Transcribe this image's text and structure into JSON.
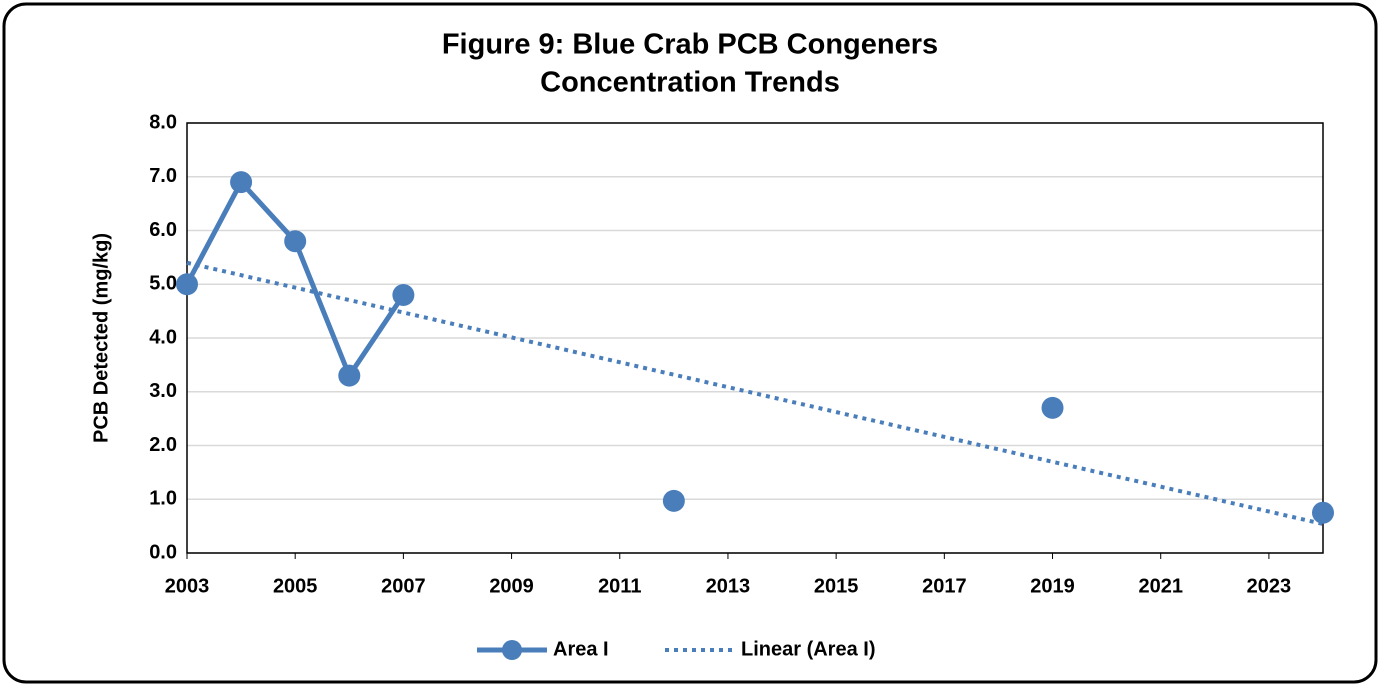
{
  "chart_data": {
    "type": "line",
    "title": [
      "Figure 9: Blue Crab PCB Congeners",
      "Concentration Trends"
    ],
    "ylabel": "PCB Detected (mg/kg)",
    "xlim": [
      2003,
      2024
    ],
    "xticks": [
      2003,
      2005,
      2007,
      2009,
      2011,
      2013,
      2015,
      2017,
      2019,
      2021,
      2023
    ],
    "ylim": [
      0,
      8
    ],
    "yticks": [
      {
        "value": 0,
        "label": "0.0"
      },
      {
        "value": 1,
        "label": "1.0"
      },
      {
        "value": 2,
        "label": "2.0"
      },
      {
        "value": 3,
        "label": "3.0"
      },
      {
        "value": 4,
        "label": "4.0"
      },
      {
        "value": 5,
        "label": "5.0"
      },
      {
        "value": 6,
        "label": "6.0"
      },
      {
        "value": 7,
        "label": "7.0"
      },
      {
        "value": 8,
        "label": "8.0"
      }
    ],
    "grid": true,
    "legend": "bottom",
    "series": [
      {
        "name": "Area I",
        "color": "#4a7ebb",
        "style": "solid",
        "marker": true,
        "x": [
          2003,
          2004,
          2005,
          2006,
          2007,
          2008,
          2009,
          2010,
          2011,
          2012,
          2013,
          2014,
          2015,
          2016,
          2017,
          2018,
          2019,
          2020,
          2021,
          2022,
          2023,
          2024
        ],
        "values": [
          5.0,
          6.9,
          5.8,
          3.3,
          4.8,
          null,
          null,
          null,
          null,
          0.97,
          null,
          null,
          null,
          null,
          null,
          null,
          2.7,
          null,
          null,
          null,
          null,
          0.75
        ]
      },
      {
        "name": "Linear (Area I)",
        "color": "#4a7ebb",
        "style": "dotted",
        "marker": false,
        "x": [
          2003,
          2024
        ],
        "values": [
          5.4,
          0.54
        ]
      }
    ]
  }
}
